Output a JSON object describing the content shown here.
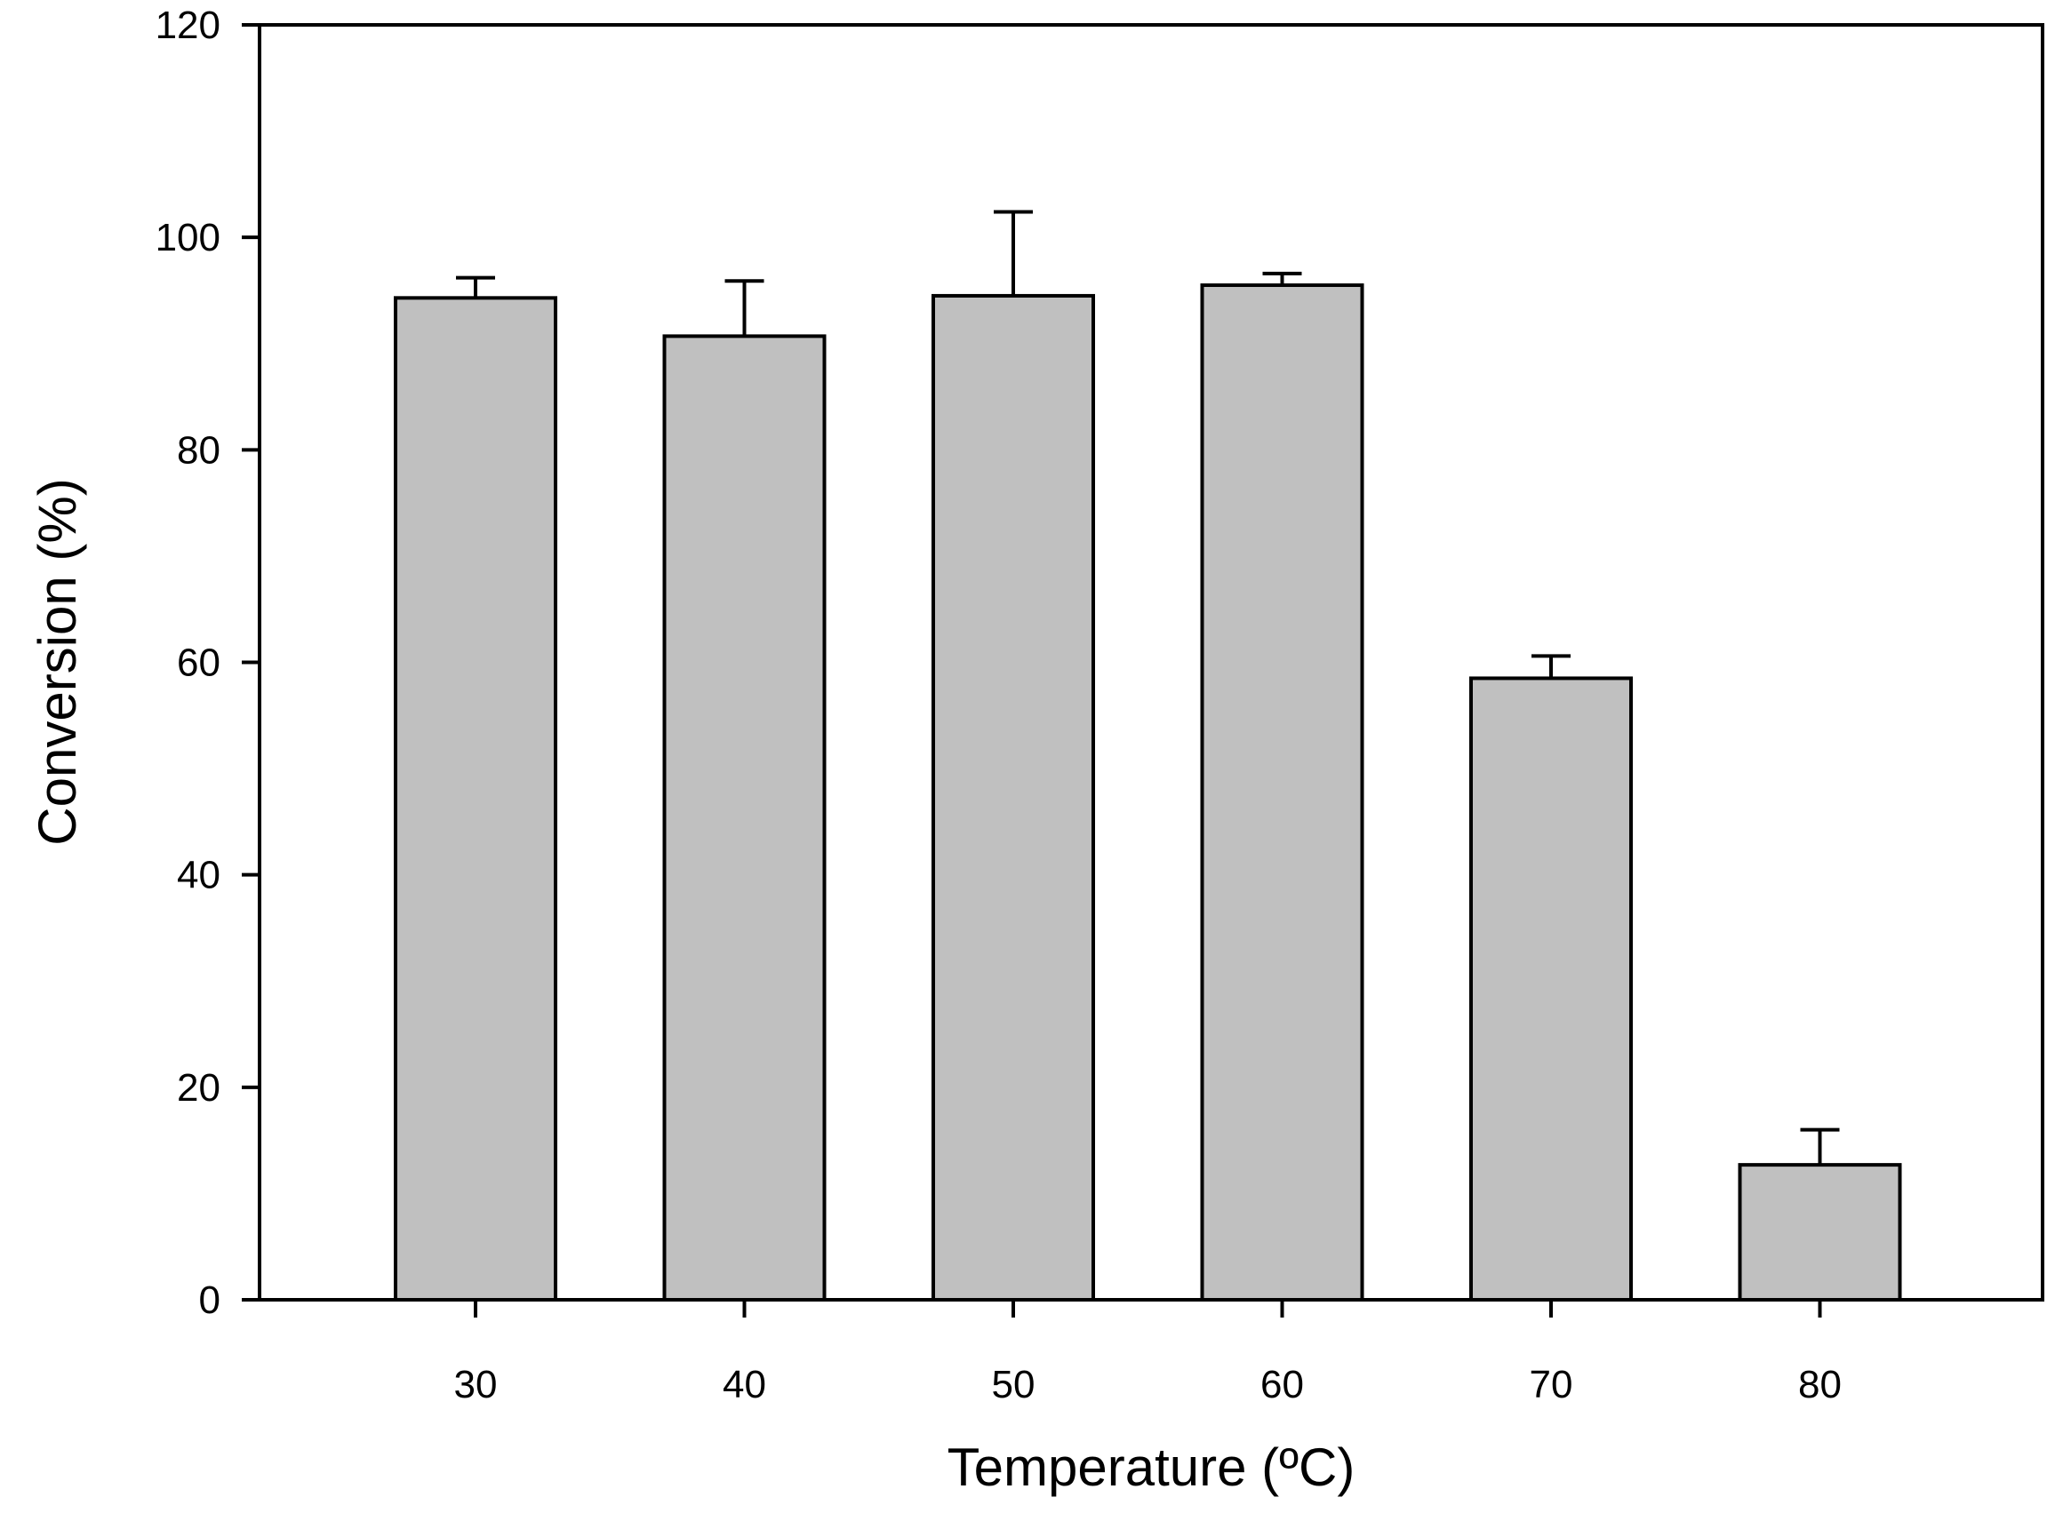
{
  "chart_data": {
    "type": "bar",
    "title": "",
    "xlabel": "Temperature (ºC)",
    "ylabel": "Conversion (%)",
    "categories": [
      "30",
      "40",
      "50",
      "60",
      "70",
      "80"
    ],
    "values": [
      94.3,
      90.7,
      94.5,
      95.5,
      58.5,
      12.7
    ],
    "error_bars": [
      1.9,
      5.2,
      7.9,
      1.1,
      2.1,
      3.3
    ],
    "ylim": [
      0,
      120
    ],
    "yticks": [
      "0",
      "20",
      "40",
      "60",
      "80",
      "100",
      "120"
    ],
    "grid": false,
    "legend": "none",
    "colors": {
      "bar_fill": "#c0c0c0",
      "bar_edge": "#000000",
      "axis": "#000000"
    }
  }
}
